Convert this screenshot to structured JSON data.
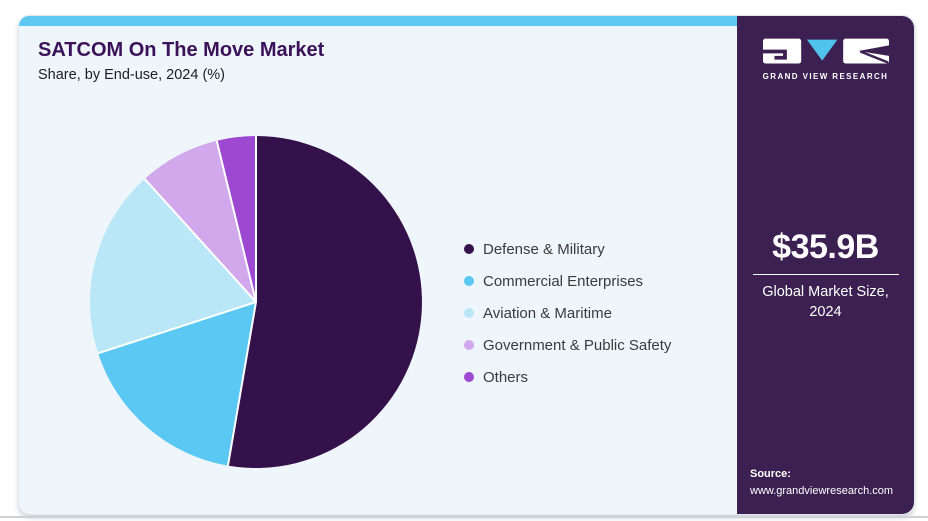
{
  "header": {
    "title": "SATCOM On The Move Market",
    "subtitle": "Share, by End-use, 2024 (%)"
  },
  "sidebar": {
    "logo_text": "GRAND VIEW RESEARCH",
    "market_size_value": "$35.9B",
    "market_size_label_line1": "Global Market Size,",
    "market_size_label_line2": "2024",
    "source_label": "Source:",
    "source_url": "www.grandviewresearch.com",
    "bg_color": "#3b2051",
    "logo_triangle_color": "#4fc3ee"
  },
  "theme": {
    "card_bg": "#eff6fb",
    "topbar_color": "#5ec7f2",
    "title_color": "#3b1259",
    "legend_text_color": "#3a3a3a"
  },
  "chart_data": {
    "type": "pie",
    "title": "SATCOM On The Move Market Share, by End-use, 2024 (%)",
    "legend_position": "right",
    "start_angle_deg": 0,
    "direction": "clockwise",
    "categories": [
      "Defense & Military",
      "Commercial Enterprises",
      "Aviation & Maritime",
      "Government & Public Safety",
      "Others"
    ],
    "values": [
      52.7,
      17.3,
      18.3,
      7.9,
      3.8
    ],
    "colors": [
      "#34114b",
      "#5ac8f3",
      "#bae7f8",
      "#d1a8ec",
      "#9c48d0"
    ],
    "unit": "%",
    "separator_color": "#ffffff"
  }
}
